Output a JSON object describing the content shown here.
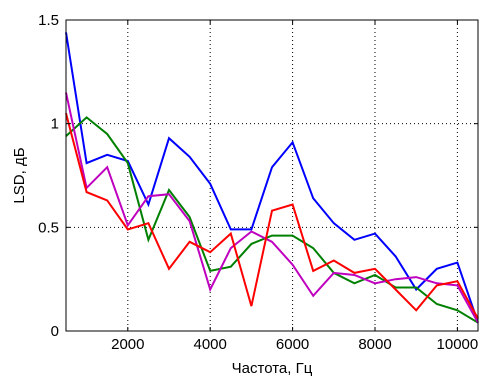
{
  "chart_data": {
    "type": "line",
    "title": "",
    "xlabel": "Частота, Гц",
    "ylabel": "LSD, дБ",
    "xlim": [
      500,
      10500
    ],
    "ylim": [
      0,
      1.5
    ],
    "xticks": [
      2000,
      4000,
      6000,
      8000,
      10000
    ],
    "yticks": [
      0,
      0.5,
      1,
      1.5
    ],
    "xtick_labels": [
      "2000",
      "4000",
      "6000",
      "8000",
      "10000"
    ],
    "ytick_labels": [
      "0",
      "0.5",
      "1",
      "1.5"
    ],
    "grid": true,
    "legend": false,
    "x": [
      500,
      1000,
      1500,
      2000,
      2500,
      3000,
      3500,
      4000,
      4500,
      5000,
      5500,
      6000,
      6500,
      7000,
      7500,
      8000,
      8500,
      9000,
      9500,
      10000,
      10500
    ],
    "series": [
      {
        "color": "#0000ff",
        "values": [
          1.44,
          0.81,
          0.85,
          0.82,
          0.61,
          0.93,
          0.84,
          0.71,
          0.49,
          0.49,
          0.79,
          0.91,
          0.64,
          0.52,
          0.44,
          0.47,
          0.36,
          0.2,
          0.3,
          0.33,
          0.04
        ]
      },
      {
        "color": "#008000",
        "values": [
          0.94,
          1.03,
          0.95,
          0.81,
          0.44,
          0.68,
          0.55,
          0.29,
          0.31,
          0.42,
          0.46,
          0.46,
          0.4,
          0.28,
          0.23,
          0.27,
          0.21,
          0.21,
          0.13,
          0.1,
          0.04
        ]
      },
      {
        "color": "#bf00bf",
        "values": [
          1.15,
          0.69,
          0.79,
          0.51,
          0.65,
          0.66,
          0.53,
          0.2,
          0.4,
          0.48,
          0.43,
          0.32,
          0.17,
          0.28,
          0.27,
          0.23,
          0.25,
          0.26,
          0.23,
          0.22,
          0.04
        ]
      },
      {
        "color": "#ff0000",
        "values": [
          1.05,
          0.67,
          0.63,
          0.49,
          0.52,
          0.3,
          0.43,
          0.38,
          0.47,
          0.12,
          0.58,
          0.61,
          0.29,
          0.34,
          0.28,
          0.3,
          0.2,
          0.1,
          0.22,
          0.24,
          0.06
        ]
      }
    ]
  }
}
